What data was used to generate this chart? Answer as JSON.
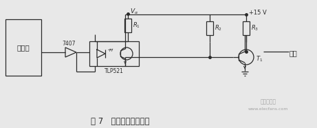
{
  "bg_color": "#e8e8e8",
  "line_color": "#2a2a2a",
  "fig_width": 4.61,
  "fig_height": 1.86,
  "dpi": 100,
  "caption": "图 7   光电耦合输出电路",
  "caption_fontsize": 8.5,
  "watermark": "电子发烧友",
  "watermark2": "www.elecfans.com",
  "lw": 0.9
}
